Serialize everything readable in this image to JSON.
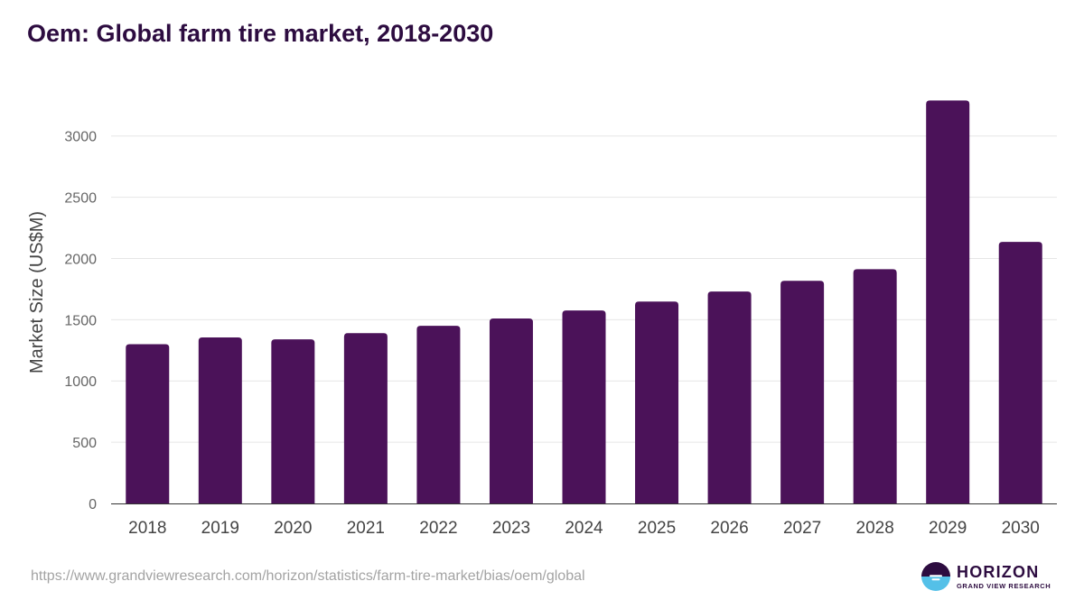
{
  "title": "Oem: Global farm tire market, 2018-2030",
  "source_url": "https://www.grandviewresearch.com/horizon/statistics/farm-tire-market/bias/oem/global",
  "logo": {
    "name": "HORIZON",
    "tagline": "GRAND VIEW RESEARCH",
    "icon": "horizon-logo-icon"
  },
  "colors": {
    "bar": "#4b1259",
    "title": "#2d0c40",
    "grid": "#e6e6e6",
    "axis": "#333333",
    "logo_blue": "#54c0e8"
  },
  "chart_data": {
    "type": "bar",
    "title": "Oem: Global farm tire market, 2018-2030",
    "xlabel": "",
    "ylabel": "Market Size (US$M)",
    "categories": [
      "2018",
      "2019",
      "2020",
      "2021",
      "2022",
      "2023",
      "2024",
      "2025",
      "2026",
      "2027",
      "2028",
      "2029",
      "2030"
    ],
    "values": [
      1300,
      1355,
      1340,
      1390,
      1450,
      1510,
      1575,
      1648,
      1730,
      1818,
      1912,
      3290,
      2135
    ],
    "ylim": [
      0,
      3300
    ],
    "yticks": [
      0,
      500,
      1000,
      1500,
      2000,
      2500,
      3000
    ],
    "grid": true,
    "legend": "none"
  }
}
